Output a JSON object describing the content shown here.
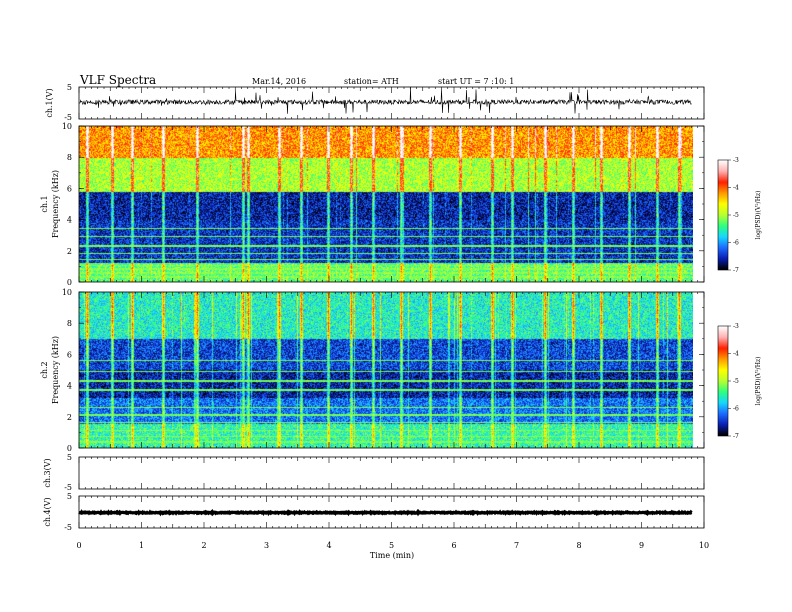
{
  "header": {
    "title": "VLF  Spectra",
    "date": "Mar.14, 2016",
    "station": "station= ATH",
    "start_ut": "start  UT  =   7  :10: 1"
  },
  "chart_data": [
    {
      "type": "line",
      "panel": "ch1-waveform",
      "ylabel": "ch.1(V)",
      "yticks": [
        "5",
        "-5"
      ],
      "ylim": [
        -5,
        5
      ],
      "x_range_min": [
        0,
        9.8
      ],
      "mean_v": 0.3,
      "amplitude_v": 0.7,
      "spikes": true
    },
    {
      "type": "heatmap",
      "panel": "ch1-spectrogram",
      "ylabel": "Frequency  (kHz)",
      "channel_label": "ch.1",
      "ylim": [
        0,
        10
      ],
      "yticks": [
        "0",
        "2",
        "4",
        "6",
        "8",
        "10"
      ],
      "x_range_min": [
        0,
        9.8
      ],
      "colorbar": {
        "label": "log(PSD)(V²/Hz)",
        "range": [
          -7,
          -3
        ],
        "ticks": [
          "-3",
          "-4",
          "-5",
          "-6",
          "-7"
        ],
        "colors": [
          "#000000",
          "#0a1fb4",
          "#1e6bff",
          "#18d8ff",
          "#30ff80",
          "#b8ff30",
          "#ffff00",
          "#ff9a00",
          "#ff2000",
          "#ffb0b0",
          "#ffffff"
        ]
      },
      "bands": [
        {
          "freq_range_khz": [
            0,
            1.2
          ],
          "log_psd": -5.3
        },
        {
          "freq_range_khz": [
            1.2,
            4.0
          ],
          "log_psd": -6.5
        },
        {
          "freq_range_khz": [
            4.0,
            5.8
          ],
          "log_psd": -6.6
        },
        {
          "freq_range_khz": [
            5.8,
            8.0
          ],
          "log_psd": -5.0
        },
        {
          "freq_range_khz": [
            8.0,
            10.0
          ],
          "log_psd": -4.2
        }
      ],
      "horizontal_lines_khz": [
        0.3,
        0.55,
        0.8,
        1.05,
        1.4,
        1.8,
        2.3,
        2.9,
        3.4
      ],
      "sferics_min": [
        0.12,
        0.52,
        0.85,
        1.35,
        1.88,
        2.62,
        2.7,
        3.2,
        3.55,
        3.98,
        4.35,
        4.7,
        5.15,
        5.62,
        6.1,
        6.6,
        6.92,
        7.45,
        7.9,
        8.35,
        8.8,
        9.25,
        9.6
      ]
    },
    {
      "type": "heatmap",
      "panel": "ch2-spectrogram",
      "ylabel": "Frequency  (kHz)",
      "channel_label": "ch.2",
      "ylim": [
        0,
        10
      ],
      "yticks": [
        "0",
        "2",
        "4",
        "6",
        "8",
        "10"
      ],
      "x_range_min": [
        0,
        9.8
      ],
      "colorbar": {
        "label": "log(PSD)(V²/Hz)",
        "range": [
          -7,
          -3
        ],
        "ticks": [
          "-3",
          "-4",
          "-5",
          "-6",
          "-7"
        ],
        "colors": [
          "#000000",
          "#0a1fb4",
          "#1e6bff",
          "#18d8ff",
          "#30ff80",
          "#b8ff30",
          "#ffff00",
          "#ff9a00",
          "#ff2000",
          "#ffb0b0",
          "#ffffff"
        ]
      },
      "bands": [
        {
          "freq_range_khz": [
            0,
            1.5
          ],
          "log_psd": -5.5
        },
        {
          "freq_range_khz": [
            1.5,
            3.2
          ],
          "log_psd": -6.2
        },
        {
          "freq_range_khz": [
            3.2,
            5.0
          ],
          "log_psd": -6.6
        },
        {
          "freq_range_khz": [
            5.0,
            7.0
          ],
          "log_psd": -6.4
        },
        {
          "freq_range_khz": [
            7.0,
            10.0
          ],
          "log_psd": -5.6
        }
      ],
      "horizontal_lines_khz": [
        0.35,
        0.7,
        1.1,
        1.6,
        2.1,
        2.6,
        3.7,
        4.3,
        4.9,
        5.6
      ],
      "sferics_min": [
        0.12,
        0.52,
        0.85,
        1.35,
        1.88,
        2.62,
        2.7,
        3.2,
        3.55,
        3.98,
        4.35,
        4.7,
        5.15,
        5.62,
        6.1,
        6.6,
        6.92,
        7.45,
        7.9,
        8.35,
        8.8,
        9.25,
        9.6
      ]
    },
    {
      "type": "line",
      "panel": "ch3-waveform",
      "ylabel": "ch.3(V)",
      "yticks": [
        "5",
        "-5"
      ],
      "ylim": [
        -5,
        5
      ],
      "x_range_min": [
        0,
        9.8
      ],
      "values": []
    },
    {
      "type": "line",
      "panel": "ch4-waveform",
      "ylabel": "ch.4(V)",
      "yticks": [
        "5",
        "-5"
      ],
      "ylim": [
        -5,
        5
      ],
      "x_range_min": [
        0,
        9.8
      ],
      "mean_v": -0.2,
      "amplitude_v": 0.15
    }
  ],
  "xaxis": {
    "label": "Time  (min)",
    "xlim": [
      0,
      10
    ],
    "ticks": [
      "0",
      "1",
      "2",
      "3",
      "4",
      "5",
      "6",
      "7",
      "8",
      "9",
      "10"
    ]
  }
}
